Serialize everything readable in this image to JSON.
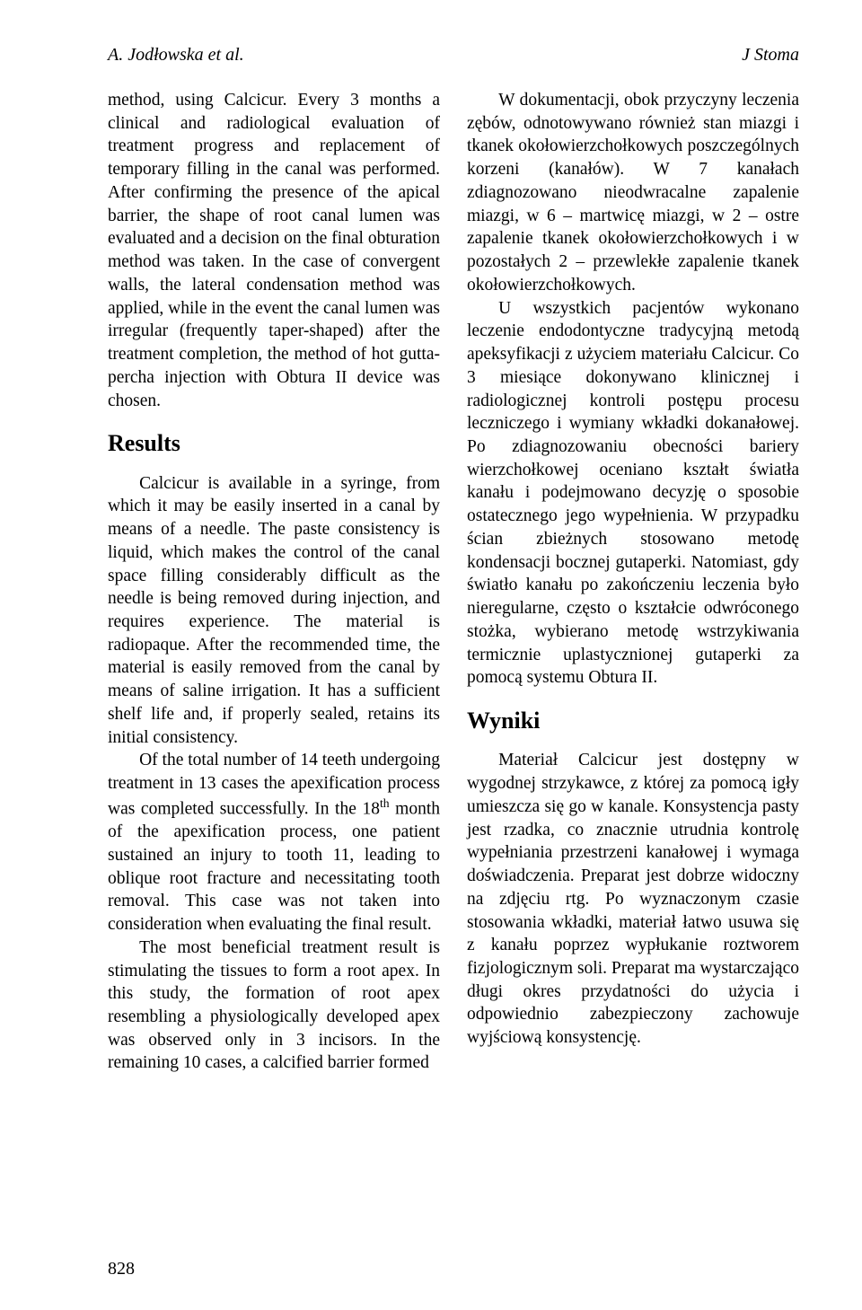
{
  "header": {
    "authors": "A. Jodłowska et al.",
    "journal": "J Stoma"
  },
  "left": {
    "p1": "method, using Calcicur. Every 3 months a clinical and radiological evaluation of treatment progress and replacement of temporary filling in the canal was performed. After confirming the presence of the apical barrier, the shape of root canal lumen was evaluated and a decision on the final obturation method was taken. In the case of convergent walls, the lateral condensation method was applied, while in the event the canal lumen was irregular (frequently taper-shaped) after the treatment completion, the method of hot gutta-percha injection with Obtura II device was chosen.",
    "h_results": "Results",
    "p2": "Calcicur is available in a syringe, from which it may be easily inserted in a canal by means of a needle. The paste consistency is liquid, which makes the control of the canal space filling considerably difficult as the needle is being removed during injection, and requires experience. The material is radiopaque. After the recommended time, the material is easily removed from the canal by means of saline irrigation. It has a sufficient shelf life and, if properly sealed, retains its initial consistency.",
    "p3a": "Of the total number of 14 teeth undergoing treatment in 13 cases the apexification process was completed successfully. In the 18",
    "p3b": " month of the apexification process, one patient sustained an injury to tooth 11, leading to oblique root fracture and necessitating tooth removal. This case was not taken into consideration when evaluating the final result.",
    "p4": "The most beneficial treatment result is stimulating the tissues to form a root apex. In this study, the formation of root apex resembling a physiologically developed apex was observed only in 3 incisors. In the remaining 10 cases, a calcified barrier formed"
  },
  "right": {
    "p1": "W dokumentacji, obok przyczyny leczenia zębów, odnotowywano również stan miazgi i tkanek okołowierzchołkowych poszczególnych korzeni (kanałów). W 7 kanałach zdiagnozowano nieodwracalne zapalenie miazgi, w 6 – martwicę miazgi, w 2 – ostre zapalenie tkanek okołowierzchołkowych i w pozostałych 2 – przewlekłe zapalenie tkanek okołowierzchołkowych.",
    "p2": "U wszystkich pacjentów wykonano leczenie endodontyczne tradycyjną metodą apeksyfikacji z użyciem materiału Calcicur. Co 3 miesiące dokonywano klinicznej i radiologicznej kontroli postępu procesu leczniczego i wymiany wkładki dokanałowej. Po zdiagnozowaniu obecności bariery wierzchołkowej oceniano kształt światła kanału i podejmowano decyzję o sposobie ostatecznego jego wypełnienia. W przypadku ścian zbieżnych stosowano metodę kondensacji bocznej gutaperki. Natomiast, gdy światło kanału po zakończeniu leczenia było nieregularne, często o kształcie odwróconego stożka, wybierano metodę wstrzykiwania termicznie uplastycznionej gutaperki za pomocą systemu Obtura II.",
    "h_wyniki": "Wyniki",
    "p3": "Materiał Calcicur jest dostępny w wygodnej strzykawce, z której za pomocą igły umieszcza się go w kanale. Konsystencja pasty jest rzadka, co znacznie utrudnia kontrolę wypełniania przestrzeni kanałowej i wymaga doświadczenia. Preparat jest dobrze widoczny na zdjęciu rtg. Po wyznaczonym czasie stosowania wkładki, materiał łatwo usuwa się z kanału poprzez wypłukanie roztworem fizjologicznym soli. Preparat ma wystarczająco długi okres przydatności do użycia i odpowiednio zabezpieczony zachowuje wyjściową konsystencję."
  },
  "pagenum": "828"
}
